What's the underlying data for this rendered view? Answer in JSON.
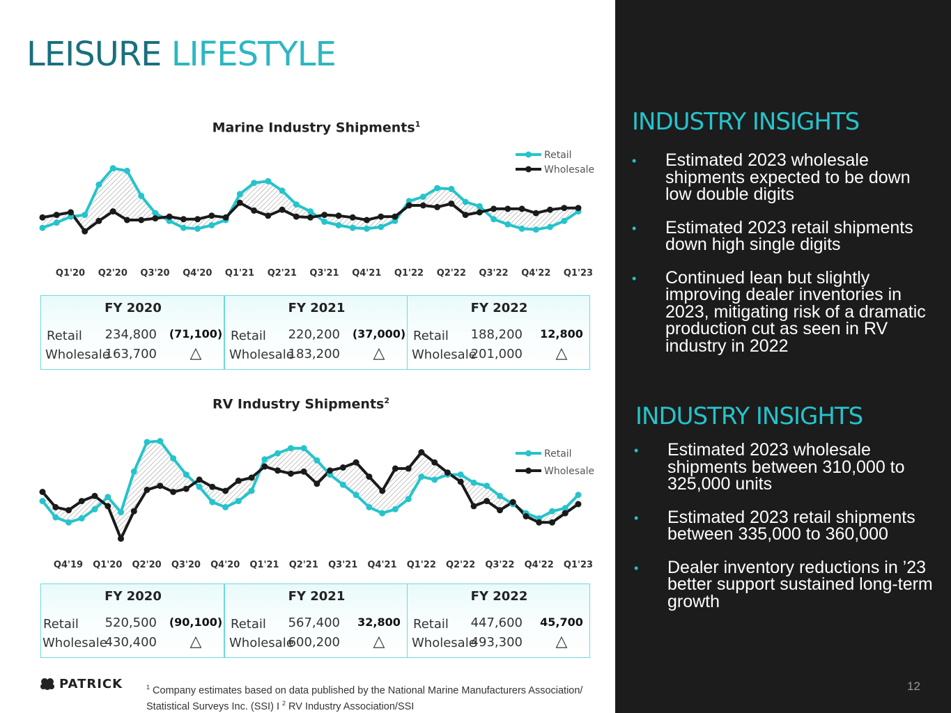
{
  "page": {
    "title_part1": "LEISURE",
    "title_part2": "LIFESTYLE",
    "page_number": "12"
  },
  "logo": {
    "text": "PATRICK"
  },
  "footnote": {
    "sup1": "1",
    "text1": " Company estimates based on data published by the National Marine Manufacturers Association/ Statistical Surveys Inc. (SSI) I ",
    "sup2": "2",
    "text2": " RV Industry Association/SSI"
  },
  "insights": [
    {
      "heading": "INDUSTRY INSIGHTS",
      "bullets": [
        "Estimated 2023 wholesale shipments expected to be down low double digits",
        "Estimated 2023 retail shipments down high single digits",
        "Continued lean but slightly improving dealer inventories in 2023, mitigating risk of a dramatic production cut as seen in RV industry in 2022"
      ]
    },
    {
      "heading": "INDUSTRY INSIGHTS",
      "bullets": [
        "Estimated 2023 wholesale shipments between 310,000 to 325,000 units",
        "Estimated 2023 retail shipments between 335,000 to 360,000",
        "Dealer inventory reductions in ’23 better support sustained long-term growth"
      ]
    }
  ],
  "colors": {
    "retail": "#26c3cb",
    "wholesale": "#1a1a1a",
    "accent": "#1a6f7d",
    "panel": "#1c1c1c"
  },
  "chart_data": [
    {
      "type": "line",
      "title": "Marine Industry Shipments",
      "title_sup": "1",
      "legend_position": "top-right",
      "x_tick_labels": [
        "Q1'20",
        "Q2'20",
        "Q3'20",
        "Q4'20",
        "Q1'21",
        "Q2'21",
        "Q3'21",
        "Q4'21",
        "Q1'22",
        "Q2'22",
        "Q3'22",
        "Q4'22",
        "Q1'23"
      ],
      "ylim": [
        0,
        100
      ],
      "series": [
        {
          "name": "Retail",
          "values": [
            20,
            26,
            33,
            35,
            70,
            89,
            86,
            57,
            37,
            28,
            20,
            19,
            23,
            29,
            59,
            72,
            74,
            63,
            47,
            39,
            27,
            23,
            20,
            19,
            21,
            28,
            51,
            56,
            66,
            65,
            50,
            45,
            30,
            24,
            19,
            18,
            21,
            28,
            39
          ]
        },
        {
          "name": "Wholesale",
          "values": [
            32,
            35,
            38,
            16,
            28,
            39,
            29,
            29,
            31,
            33,
            30,
            30,
            34,
            32,
            49,
            40,
            34,
            41,
            33,
            32,
            35,
            34,
            32,
            29,
            33,
            33,
            46,
            46,
            44,
            48,
            35,
            38,
            42,
            42,
            42,
            37,
            41,
            43,
            43
          ]
        }
      ],
      "fy_boxes": [
        {
          "fy": "FY 2020",
          "retail_label": "Retail",
          "retail": "234,800",
          "wholesale_label": "Wholesale",
          "wholesale": "163,700",
          "delta": "(71,100)"
        },
        {
          "fy": "FY 2021",
          "retail_label": "Retail",
          "retail": "220,200",
          "wholesale_label": "Wholesale",
          "wholesale": "183,200",
          "delta": "(37,000)"
        },
        {
          "fy": "FY 2022",
          "retail_label": "Retail",
          "retail": "188,200",
          "wholesale_label": "Wholesale",
          "wholesale": "201,000",
          "delta": "12,800"
        }
      ]
    },
    {
      "type": "line",
      "title": "RV Industry Shipments",
      "title_sup": "2",
      "legend_position": "top-right",
      "x_tick_labels": [
        "Q4'19",
        "Q1'20",
        "Q2'20",
        "Q3'20",
        "Q4'20",
        "Q1'21",
        "Q2'21",
        "Q3'21",
        "Q4'21",
        "Q1'22",
        "Q2'22",
        "Q3'22",
        "Q4'22",
        "Q1'23"
      ],
      "ylim": [
        0,
        100
      ],
      "series": [
        {
          "name": "Retail",
          "values": [
            40,
            24,
            19,
            23,
            32,
            44,
            29,
            69,
            98,
            99,
            82,
            66,
            54,
            39,
            34,
            40,
            50,
            81,
            87,
            92,
            92,
            80,
            66,
            56,
            46,
            34,
            28,
            32,
            42,
            64,
            61,
            66,
            66,
            58,
            55,
            45,
            37,
            28,
            23,
            30,
            33,
            46
          ]
        },
        {
          "name": "Wholesale",
          "values": [
            49,
            34,
            31,
            40,
            45,
            35,
            3,
            30,
            51,
            55,
            49,
            52,
            61,
            54,
            50,
            60,
            63,
            74,
            70,
            67,
            69,
            57,
            70,
            73,
            78,
            64,
            50,
            72,
            72,
            88,
            78,
            68,
            59,
            35,
            40,
            31,
            39,
            25,
            19,
            19,
            28,
            37
          ]
        }
      ],
      "fy_boxes": [
        {
          "fy": "FY 2020",
          "retail_label": "Retail",
          "retail": "520,500",
          "wholesale_label": "Wholesale",
          "wholesale": "430,400",
          "delta": "(90,100)"
        },
        {
          "fy": "FY 2021",
          "retail_label": "Retail",
          "retail": "567,400",
          "wholesale_label": "Wholesale",
          "wholesale": "600,200",
          "delta": "32,800"
        },
        {
          "fy": "FY 2022",
          "retail_label": "Retail",
          "retail": "447,600",
          "wholesale_label": "Wholesale",
          "wholesale": "493,300",
          "delta": "45,700"
        }
      ]
    }
  ]
}
